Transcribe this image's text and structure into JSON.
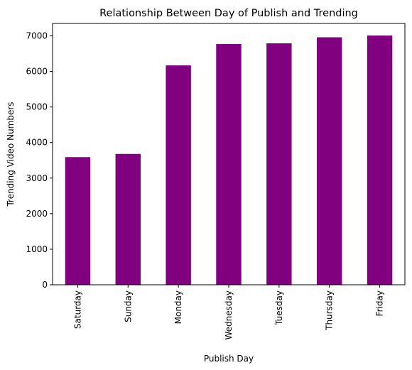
{
  "chart_data": {
    "type": "bar",
    "title": "Relationship Between Day of Publish and Trending",
    "xlabel": "Publish Day",
    "ylabel": "Trending Video Numbers",
    "categories": [
      "Saturday",
      "Sunday",
      "Monday",
      "Wednesday",
      "Tuesday",
      "Thursday",
      "Friday"
    ],
    "values": [
      3590,
      3680,
      6170,
      6770,
      6790,
      6960,
      7010
    ],
    "ylim": [
      0,
      7350
    ],
    "yticks": [
      "0",
      "1000",
      "2000",
      "3000",
      "4000",
      "5000",
      "6000",
      "7000"
    ],
    "bar_color": "#800080",
    "grid": false,
    "legend": "none"
  }
}
